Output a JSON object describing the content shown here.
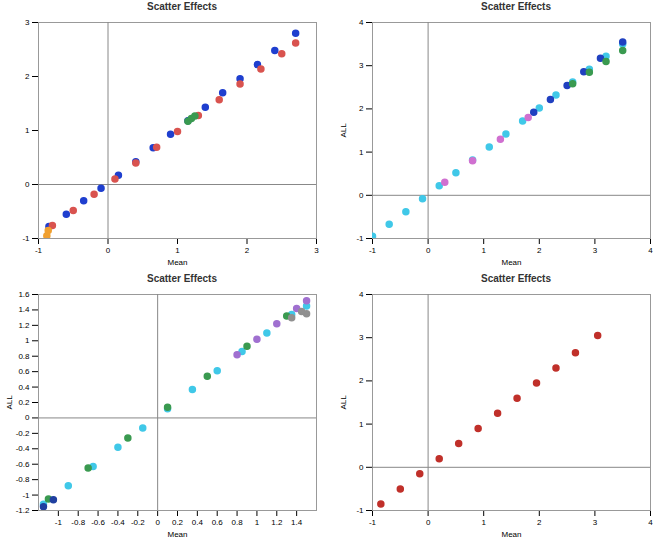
{
  "chart_data": [
    {
      "type": "scatter",
      "title": "Scatter Effects",
      "x_label": "Mean",
      "xlim": [
        -1,
        3
      ],
      "xticks": [
        -1,
        0,
        1,
        2,
        3
      ],
      "ylim": [
        -1,
        3
      ],
      "yticks": [
        -1,
        0,
        1,
        2,
        3
      ],
      "marker": "circle",
      "series": [
        {
          "color": "#1f3fcf",
          "x": [
            -0.85,
            -0.6,
            -0.35,
            -0.1,
            0.15,
            0.4,
            0.65,
            0.9,
            1.15,
            1.4,
            1.65,
            1.9,
            2.15,
            2.4,
            2.7
          ],
          "values": [
            -0.78,
            -0.55,
            -0.3,
            -0.07,
            0.17,
            0.42,
            0.68,
            0.93,
            1.18,
            1.43,
            1.7,
            1.96,
            2.22,
            2.48,
            2.8
          ]
        },
        {
          "color": "#d9534f",
          "x": [
            -0.8,
            -0.5,
            -0.2,
            0.1,
            0.4,
            0.7,
            1.0,
            1.3,
            1.6,
            1.9,
            2.2,
            2.5,
            2.7
          ],
          "values": [
            -0.76,
            -0.48,
            -0.18,
            0.1,
            0.4,
            0.69,
            0.98,
            1.28,
            1.57,
            1.86,
            2.14,
            2.42,
            2.62
          ]
        },
        {
          "color": "#f0a030",
          "x": [
            -0.88,
            -0.86
          ],
          "values": [
            -0.95,
            -0.85
          ]
        },
        {
          "color": "#3a9a50",
          "x": [
            1.15,
            1.2,
            1.25
          ],
          "values": [
            1.17,
            1.22,
            1.27
          ]
        }
      ]
    },
    {
      "type": "scatter",
      "title": "Scatter Effects",
      "x_label": "Mean",
      "y_label": "ALL",
      "xlim": [
        -1,
        4
      ],
      "xticks": [
        -1,
        0,
        1,
        2,
        3,
        4
      ],
      "ylim": [
        -1,
        4
      ],
      "yticks": [
        -1,
        0,
        1,
        2,
        3,
        4
      ],
      "marker": "circle",
      "series": [
        {
          "color": "#40c8e8",
          "x": [
            -1,
            -0.7,
            -0.4,
            -0.1,
            0.2,
            0.5,
            0.8,
            1.1,
            1.4,
            1.7,
            2.0,
            2.3,
            2.6,
            2.9,
            3.2,
            3.5
          ],
          "values": [
            -0.95,
            -0.67,
            -0.38,
            -0.08,
            0.22,
            0.52,
            0.82,
            1.12,
            1.42,
            1.72,
            2.02,
            2.32,
            2.62,
            2.92,
            3.22,
            3.5
          ]
        },
        {
          "color": "#2040c0",
          "x": [
            1.9,
            2.2,
            2.5,
            2.8,
            3.1,
            3.5
          ],
          "values": [
            1.92,
            2.22,
            2.54,
            2.86,
            3.17,
            3.55
          ]
        },
        {
          "color": "#3a9a50",
          "x": [
            2.6,
            2.9,
            3.2,
            3.5
          ],
          "values": [
            2.58,
            2.85,
            3.1,
            3.35
          ]
        },
        {
          "color": "#d070d0",
          "x": [
            0.3,
            0.8,
            1.3,
            1.8
          ],
          "values": [
            0.3,
            0.8,
            1.3,
            1.8
          ]
        }
      ]
    },
    {
      "type": "scatter",
      "title": "Scatter Effects",
      "x_label": "Mean",
      "y_label": "ALL",
      "xlim": [
        -1.2,
        1.6
      ],
      "xticks": [
        -1,
        -0.8,
        -0.6,
        -0.4,
        -0.2,
        0,
        0.2,
        0.4,
        0.6,
        0.8,
        1,
        1.2,
        1.4
      ],
      "ylim": [
        -1.2,
        1.6
      ],
      "yticks": [
        -1.2,
        -1,
        -0.8,
        -0.6,
        -0.4,
        -0.2,
        0,
        0.2,
        0.4,
        0.6,
        0.8,
        1,
        1.2,
        1.4,
        1.6
      ],
      "marker": "circle",
      "series": [
        {
          "color": "#40c8e8",
          "x": [
            -1.15,
            -0.9,
            -0.65,
            -0.4,
            -0.15,
            0.1,
            0.35,
            0.6,
            0.85,
            1.1,
            1.35,
            1.5
          ],
          "values": [
            -1.12,
            -0.88,
            -0.63,
            -0.38,
            -0.13,
            0.12,
            0.37,
            0.61,
            0.86,
            1.1,
            1.34,
            1.45
          ]
        },
        {
          "color": "#3a9a50",
          "x": [
            -1.1,
            -0.7,
            -0.3,
            0.1,
            0.5,
            0.9,
            1.3
          ],
          "values": [
            -1.05,
            -0.65,
            -0.26,
            0.14,
            0.54,
            0.93,
            1.32
          ]
        },
        {
          "color": "#a070d0",
          "x": [
            0.8,
            1.0,
            1.2,
            1.4,
            1.5
          ],
          "values": [
            0.82,
            1.02,
            1.22,
            1.42,
            1.52
          ]
        },
        {
          "color": "#909090",
          "x": [
            1.35,
            1.45,
            1.5
          ],
          "values": [
            1.3,
            1.38,
            1.35
          ]
        },
        {
          "color": "#2040a0",
          "x": [
            -1.15,
            -1.05
          ],
          "values": [
            -1.15,
            -1.06
          ]
        }
      ]
    },
    {
      "type": "scatter",
      "title": "Scatter Effects",
      "x_label": "Mean",
      "y_label": "ALL",
      "xlim": [
        -1,
        4
      ],
      "xticks": [
        -1,
        0,
        1,
        2,
        3,
        4
      ],
      "ylim": [
        -1,
        4
      ],
      "yticks": [
        -1,
        0,
        1,
        2,
        3,
        4
      ],
      "marker": "circle",
      "series": [
        {
          "color": "#c0302a",
          "x": [
            -0.85,
            -0.5,
            -0.15,
            0.2,
            0.55,
            0.9,
            1.25,
            1.6,
            1.95,
            2.3,
            2.65,
            3.05
          ],
          "values": [
            -0.85,
            -0.5,
            -0.15,
            0.2,
            0.55,
            0.9,
            1.25,
            1.6,
            1.95,
            2.3,
            2.65,
            3.05
          ]
        }
      ]
    }
  ]
}
